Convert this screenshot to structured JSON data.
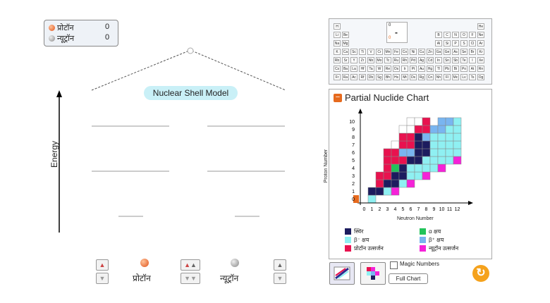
{
  "counts": {
    "proton_label": "प्रोटॉन",
    "proton_value": "0",
    "neutron_label": "न्यूट्रॉन",
    "neutron_value": "0"
  },
  "shell": {
    "title": "Nuclear Shell Model",
    "energy_label": "Energy"
  },
  "controls": {
    "proton_label": "प्रोटॉन",
    "neutron_label": "न्यूट्रॉन"
  },
  "periodic": {
    "selected_number": "0",
    "selected_symbol": "-",
    "selected_mass": "0",
    "rows": [
      [
        "H",
        "",
        "",
        "",
        "",
        "",
        "",
        "",
        "",
        "",
        "",
        "",
        "",
        "",
        "",
        "",
        "",
        "He"
      ],
      [
        "Li",
        "Be",
        "",
        "",
        "",
        "",
        "",
        "",
        "",
        "",
        "",
        "",
        "B",
        "C",
        "N",
        "O",
        "F",
        "Ne"
      ],
      [
        "Na",
        "Mg",
        "",
        "",
        "",
        "",
        "",
        "",
        "",
        "",
        "",
        "",
        "Al",
        "Si",
        "P",
        "S",
        "Cl",
        "Ar"
      ],
      [
        "K",
        "Ca",
        "Sc",
        "Ti",
        "V",
        "Cr",
        "Mn",
        "Fe",
        "Co",
        "Ni",
        "Cu",
        "Zn",
        "Ga",
        "Ge",
        "As",
        "Se",
        "Br",
        "Kr"
      ],
      [
        "Rb",
        "Sr",
        "Y",
        "Zr",
        "Nb",
        "Mo",
        "Tc",
        "Ru",
        "Rh",
        "Pd",
        "Ag",
        "Cd",
        "In",
        "Sn",
        "Sb",
        "Te",
        "I",
        "Xe"
      ],
      [
        "Cs",
        "Ba",
        "La",
        "Hf",
        "Ta",
        "W",
        "Re",
        "Os",
        "Ir",
        "Pt",
        "Au",
        "Hg",
        "Tl",
        "Pb",
        "Bi",
        "Po",
        "At",
        "Rn"
      ],
      [
        "Fr",
        "Ra",
        "Ac",
        "Rf",
        "Db",
        "Sg",
        "Bh",
        "Hs",
        "Mt",
        "Ds",
        "Rg",
        "Cn",
        "Nh",
        "Fl",
        "Mc",
        "Lv",
        "Ts",
        "Og"
      ]
    ]
  },
  "nuclide_chart": {
    "title": "Partial Nuclide Chart",
    "ylabel": "Proton Number",
    "xlabel": "Neutron Number",
    "x_ticks": [
      "0",
      "1",
      "2",
      "3",
      "4",
      "5",
      "6",
      "7",
      "8",
      "9",
      "10",
      "11",
      "12"
    ],
    "y_ticks": [
      "0",
      "1",
      "2",
      "3",
      "4",
      "5",
      "6",
      "7",
      "8",
      "9",
      "10"
    ],
    "legend": [
      {
        "label": "स्थिर",
        "color": "#1c1c5e"
      },
      {
        "label": "α क्षय",
        "color": "#22c35a"
      },
      {
        "label": "β⁻ क्षय",
        "color": "#8ff0f2"
      },
      {
        "label": "β⁺ क्षय",
        "color": "#79b5f0"
      },
      {
        "label": "प्रोटॉन उत्सर्जन",
        "color": "#e8124f"
      },
      {
        "label": "न्यूट्रॉन उत्सर्जन",
        "color": "#f522d8"
      }
    ]
  },
  "options": {
    "magic_numbers_label": "Magic Numbers",
    "full_chart_label": "Full Chart"
  }
}
